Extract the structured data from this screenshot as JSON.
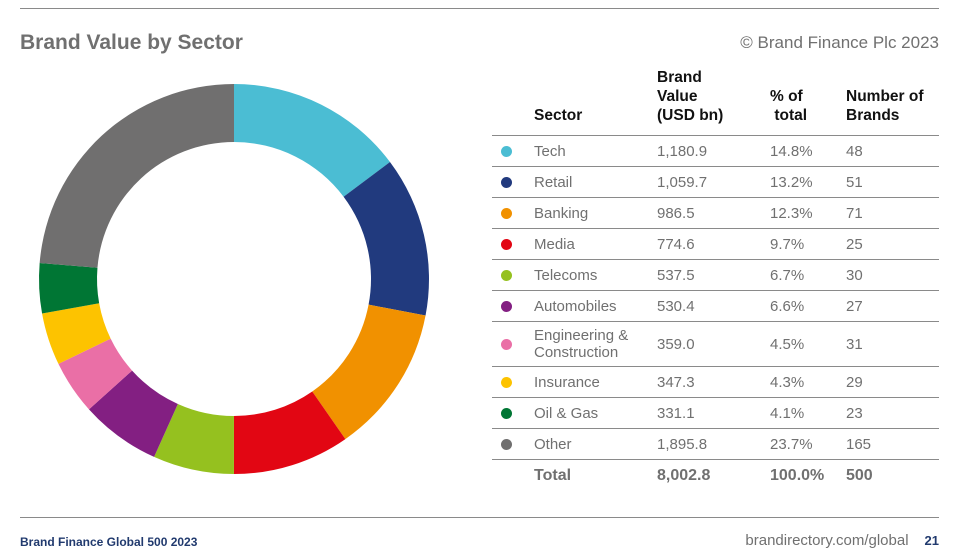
{
  "title": "Brand Value by Sector",
  "copyright": "© Brand Finance Plc 2023",
  "footer": {
    "left": "Brand Finance Global 500 2023",
    "url": "brandirectory.com/global",
    "page": "21"
  },
  "table": {
    "headers": {
      "sector": "Sector",
      "value_l1": "Brand",
      "value_l2": "Value",
      "value_l3": "(USD bn)",
      "pct_l1": "% of",
      "pct_l2": "total",
      "num_l1": "Number of",
      "num_l2": "Brands"
    },
    "rows": [
      {
        "sector": "Tech",
        "value": "1,180.9",
        "pct": "14.8%",
        "brands": "48",
        "color": "#4bbdd3"
      },
      {
        "sector": "Retail",
        "value": "1,059.7",
        "pct": "13.2%",
        "brands": "51",
        "color": "#213a7e"
      },
      {
        "sector": "Banking",
        "value": "986.5",
        "pct": "12.3%",
        "brands": "71",
        "color": "#f19100"
      },
      {
        "sector": "Media",
        "value": "774.6",
        "pct": "9.7%",
        "brands": "25",
        "color": "#e20613"
      },
      {
        "sector": "Telecoms",
        "value": "537.5",
        "pct": "6.7%",
        "brands": "30",
        "color": "#95c11f"
      },
      {
        "sector": "Automobiles",
        "value": "530.4",
        "pct": "6.6%",
        "brands": "27",
        "color": "#831f82"
      },
      {
        "sector": "Engineering & Construction",
        "value": "359.0",
        "pct": "4.5%",
        "brands": "31",
        "color": "#ea6fa6",
        "l1": "Engineering &",
        "l2": "Construction"
      },
      {
        "sector": "Insurance",
        "value": "347.3",
        "pct": "4.3%",
        "brands": "29",
        "color": "#fdc300"
      },
      {
        "sector": "Oil & Gas",
        "value": "331.1",
        "pct": "4.1%",
        "brands": "23",
        "color": "#007634"
      },
      {
        "sector": "Other",
        "value": "1,895.8",
        "pct": "23.7%",
        "brands": "165",
        "color": "#706f6f"
      }
    ],
    "total": {
      "label": "Total",
      "value": "8,002.8",
      "pct": "100.0%",
      "brands": "500"
    }
  },
  "chart_data": {
    "type": "pie",
    "title": "Brand Value by Sector",
    "style": "donut",
    "categories": [
      "Tech",
      "Retail",
      "Banking",
      "Media",
      "Telecoms",
      "Automobiles",
      "Engineering & Construction",
      "Insurance",
      "Oil & Gas",
      "Other"
    ],
    "values": [
      1180.9,
      1059.7,
      986.5,
      774.6,
      537.5,
      530.4,
      359.0,
      347.3,
      331.1,
      1895.8
    ],
    "colors": [
      "#4bbdd3",
      "#213a7e",
      "#f19100",
      "#e20613",
      "#95c11f",
      "#831f82",
      "#ea6fa6",
      "#fdc300",
      "#007634",
      "#706f6f"
    ],
    "start": "top, clockwise",
    "legend": "table-right"
  }
}
